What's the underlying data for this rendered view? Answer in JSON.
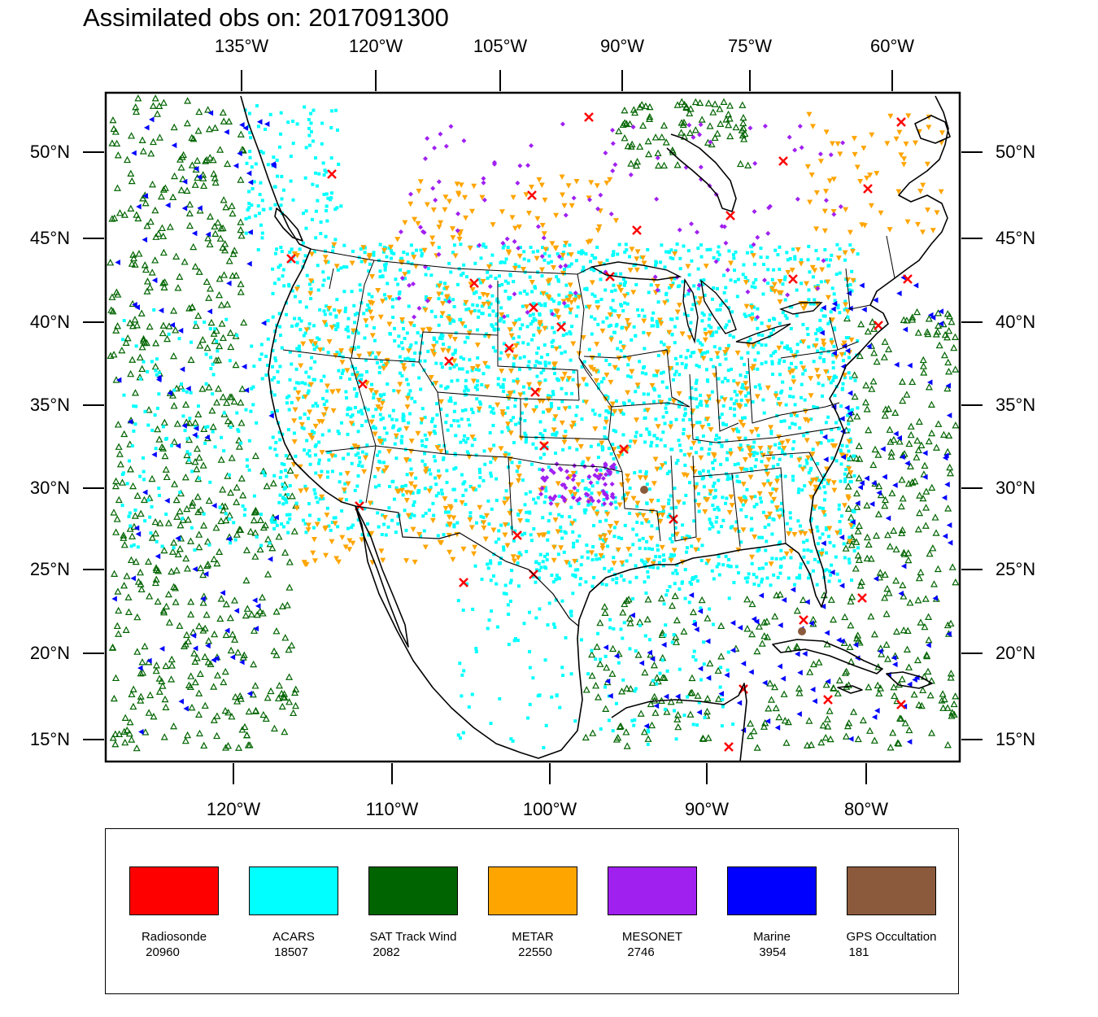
{
  "title": "Assimilated obs on: 2017091300",
  "top_lon_labels": [
    "135°W",
    "120°W",
    "105°W",
    "90°W",
    "75°W",
    "60°W"
  ],
  "bottom_lon_labels": [
    "120°W",
    "110°W",
    "100°W",
    "90°W",
    "80°W"
  ],
  "lat_labels": [
    "50°N",
    "45°N",
    "40°N",
    "35°N",
    "30°N",
    "25°N",
    "20°N",
    "15°N"
  ],
  "legend": [
    {
      "name": "Radiosonde",
      "count": "20960",
      "color": "#ff0000"
    },
    {
      "name": "ACARS",
      "count": "18507",
      "color": "#00ffff"
    },
    {
      "name": "SAT Track Wind",
      "count": "2082",
      "color": "#006400"
    },
    {
      "name": "METAR",
      "count": "22550",
      "color": "#ffa500"
    },
    {
      "name": "MESONET",
      "count": "2746",
      "color": "#a020f0"
    },
    {
      "name": "Marine",
      "count": "3954",
      "color": "#0000ff"
    },
    {
      "name": "GPS Occultation",
      "count": "181",
      "color": "#8b5a3c"
    }
  ]
}
